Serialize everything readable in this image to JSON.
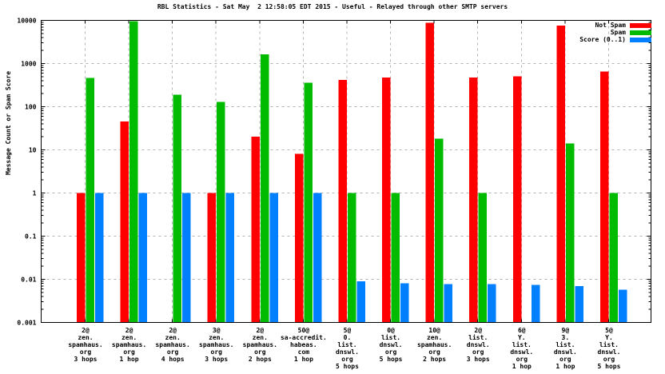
{
  "chart_data": {
    "type": "bar",
    "title": "RBL Statistics - Sat May  2 12:58:05 EDT 2015 - Useful - Relayed through other SMTP servers",
    "ylabel": "Message Count or Spam Score",
    "yscale": "log",
    "ylim": [
      0.001,
      10000
    ],
    "ytick_labels": [
      "0.001",
      "0.01",
      "0.1",
      "1",
      "10",
      "100",
      "1000",
      "10000"
    ],
    "grid": true,
    "grid_style": "dashed gray horizontal decade lines and vertical category lines",
    "legend_position": "top-right inside plot",
    "background_color": "#ffffff",
    "axis_color": "#000000",
    "categories": [
      [
        "2@",
        "zen.",
        "spamhaus.",
        "org",
        "3 hops"
      ],
      [
        "2@",
        "zen.",
        "spamhaus.",
        "org",
        "1 hop"
      ],
      [
        "2@",
        "zen.",
        "spamhaus.",
        "org",
        "4 hops"
      ],
      [
        "3@",
        "zen.",
        "spamhaus.",
        "org",
        "3 hops"
      ],
      [
        "2@",
        "zen.",
        "spamhaus.",
        "org",
        "2 hops"
      ],
      [
        "50@",
        "sa-accredit.",
        "habeas.",
        "com",
        "1 hop"
      ],
      [
        "5@",
        "0.",
        "list.",
        "dnswl.",
        "org",
        "5 hops"
      ],
      [
        "0@",
        "list.",
        "dnswl.",
        "org",
        "5 hops"
      ],
      [
        "10@",
        "zen.",
        "spamhaus.",
        "org",
        "2 hops"
      ],
      [
        "2@",
        "list.",
        "dnswl.",
        "org",
        "3 hops"
      ],
      [
        "6@",
        "Y.",
        "list.",
        "dnswl.",
        "org",
        "1 hop"
      ],
      [
        "9@",
        "3.",
        "list.",
        "dnswl.",
        "org",
        "1 hop"
      ],
      [
        "5@",
        "Y.",
        "list.",
        "dnswl.",
        "org",
        "5 hops"
      ]
    ],
    "series": [
      {
        "name": "Not Spam",
        "color": "#ff0000",
        "values": [
          1,
          45,
          null,
          1,
          20,
          8,
          420,
          470,
          8800,
          470,
          510,
          7500,
          650
        ]
      },
      {
        "name": "Spam",
        "color": "#00bb00",
        "values": [
          460,
          9500,
          190,
          130,
          1650,
          360,
          1,
          1,
          18,
          1,
          null,
          14,
          1
        ]
      },
      {
        "name": "Score (0..1)",
        "color": "#0080ff",
        "values": [
          1,
          1,
          1,
          1,
          1,
          1,
          0.009,
          0.008,
          0.0078,
          0.0077,
          0.0074,
          0.007,
          0.0058
        ]
      }
    ]
  }
}
